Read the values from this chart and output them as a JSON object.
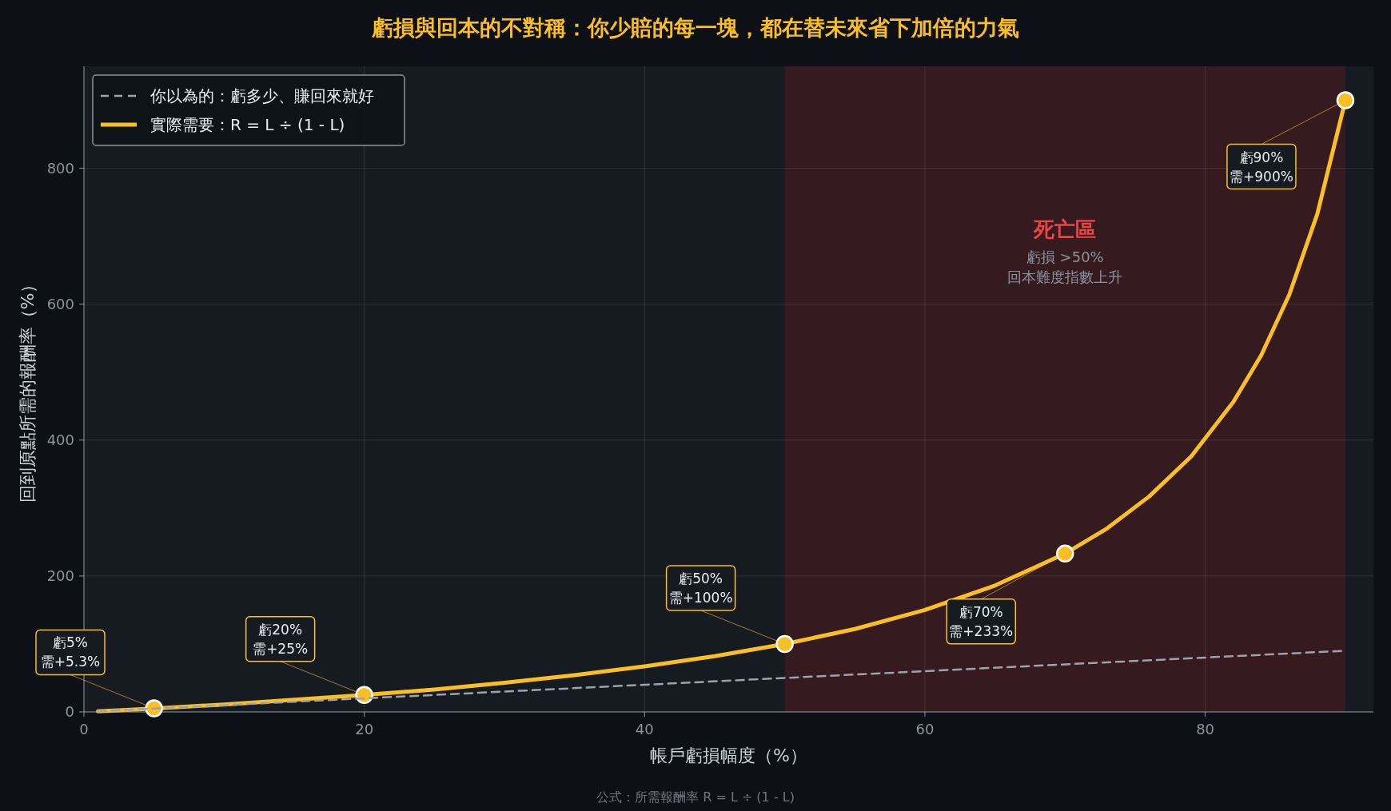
{
  "chart_data": {
    "type": "line",
    "title": "虧損與回本的不對稱：你少賠的每一塊，都在替未來省下加倍的力氣",
    "xlabel": "帳戶虧損幅度（%）",
    "ylabel": "回到原點所需的報酬率（%）",
    "xlim": [
      0,
      92
    ],
    "ylim": [
      0,
      950
    ],
    "xticks": [
      0,
      20,
      40,
      60,
      80
    ],
    "yticks": [
      0,
      200,
      400,
      600,
      800
    ],
    "grid": true,
    "legend": "top left",
    "series": [
      {
        "name": "你以為的：虧多少、賺回來就好",
        "line_style": "dashed",
        "color": "#9ca3af",
        "x": [
          1,
          90
        ],
        "values": [
          1,
          90
        ]
      },
      {
        "name": "實際需要：R = L ÷ (1 - L)",
        "line_style": "solid",
        "color": "#fbbf24",
        "x": [
          1,
          5,
          10,
          15,
          20,
          25,
          30,
          35,
          40,
          45,
          50,
          55,
          60,
          65,
          70,
          73,
          76,
          79,
          82,
          84,
          86,
          88,
          90
        ],
        "values": [
          1,
          5,
          11,
          18,
          25,
          33,
          43,
          54,
          67,
          82,
          100,
          122,
          150,
          186,
          233,
          270,
          317,
          376,
          456,
          525,
          614,
          733,
          900
        ]
      },
      {
        "type": "scatter",
        "marker": "circle",
        "color": "#fbbf24",
        "x": [
          5,
          20,
          50,
          70,
          90
        ],
        "values": [
          5.3,
          25,
          100,
          233,
          900
        ]
      }
    ],
    "bands": [
      {
        "axis": "x",
        "from": 50,
        "to": 90,
        "label": "死亡區",
        "color": "#7f1d1d"
      }
    ],
    "annotations": [
      {
        "text": "虧5%\n需+5.3%",
        "x": 5,
        "y": 5.3
      },
      {
        "text": "虧20%\n需+25%",
        "x": 20,
        "y": 25
      },
      {
        "text": "虧50%\n需+100%",
        "x": 50,
        "y": 100
      },
      {
        "text": "虧70%\n需+233%",
        "x": 70,
        "y": 233
      },
      {
        "text": "虧90%\n需+900%",
        "x": 90,
        "y": 900
      },
      "虧損 >50%",
      "回本難度指數上升",
      "公式：所需報酬率 R = L ÷ (1 - L)"
    ]
  }
}
